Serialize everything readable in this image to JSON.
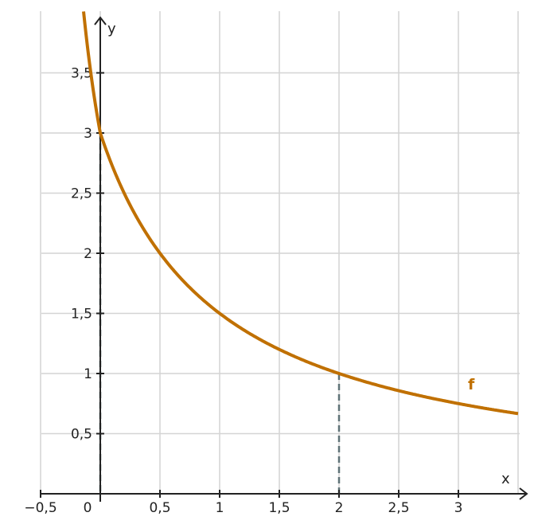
{
  "chart_data": {
    "type": "line",
    "title": "",
    "xlabel": "x",
    "ylabel": "y",
    "xlim": [
      -0.5,
      3.5
    ],
    "ylim": [
      0,
      3.85
    ],
    "grid": true,
    "x_ticks": [
      {
        "value": -0.5,
        "label": "−0,5"
      },
      {
        "value": 0,
        "label": "0"
      },
      {
        "value": 0.5,
        "label": "0,5"
      },
      {
        "value": 1,
        "label": "1"
      },
      {
        "value": 1.5,
        "label": "1,5"
      },
      {
        "value": 2,
        "label": "2"
      },
      {
        "value": 2.5,
        "label": "2,5"
      },
      {
        "value": 3,
        "label": "3"
      }
    ],
    "y_ticks": [
      {
        "value": 0.5,
        "label": "0,5"
      },
      {
        "value": 1,
        "label": "1"
      },
      {
        "value": 1.5,
        "label": "1,5"
      },
      {
        "value": 2,
        "label": "2"
      },
      {
        "value": 2.5,
        "label": "2,5"
      },
      {
        "value": 3,
        "label": "3"
      },
      {
        "value": 3.5,
        "label": "3,5"
      }
    ],
    "series": [
      {
        "name": "f",
        "color": "#c07000",
        "x": [
          -0.3,
          -0.25,
          -0.2,
          -0.15,
          -0.1,
          -0.05,
          0,
          0.1,
          0.2,
          0.3,
          0.4,
          0.5,
          0.6,
          0.7,
          0.8,
          0.9,
          1,
          1.1,
          1.2,
          1.3,
          1.4,
          1.5,
          1.6,
          1.7,
          1.8,
          1.9,
          2,
          2.2,
          2.4,
          2.6,
          2.8,
          3,
          3.2,
          3.4,
          3.5
        ],
        "y": [
          3.75,
          3.692,
          3.636,
          3.58,
          3.533,
          3.483,
          3,
          2.727,
          2.5,
          2.308,
          2.143,
          2,
          1.875,
          1.765,
          1.667,
          1.579,
          1.5,
          1.429,
          1.364,
          1.304,
          1.25,
          1.2,
          1.154,
          1.111,
          1.071,
          1.034,
          1,
          0.9375,
          0.882,
          0.833,
          0.789,
          0.75,
          0.714,
          0.682,
          0.667
        ]
      }
    ],
    "reference_lines": [
      {
        "x": 0,
        "y": 3,
        "style": "dashed",
        "color": "#5f7277"
      },
      {
        "x": 2,
        "y": 1,
        "style": "dashed",
        "color": "#5f7277"
      }
    ]
  }
}
